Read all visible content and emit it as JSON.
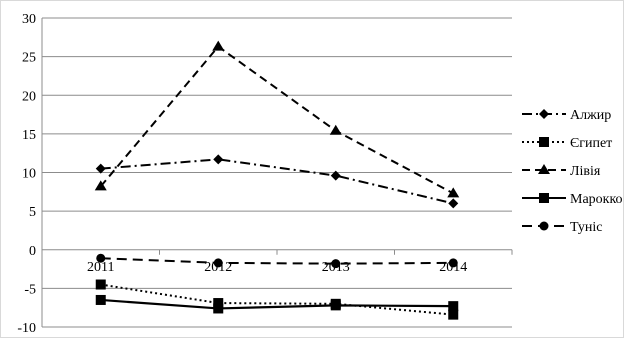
{
  "chart_data": {
    "type": "line",
    "categories": [
      "2011",
      "2012",
      "2013",
      "2014"
    ],
    "ylim": [
      -10,
      30
    ],
    "y_ticks": [
      "30",
      "25",
      "20",
      "15",
      "10",
      "5",
      "0",
      "-5",
      "-10"
    ],
    "grid": "horizontal",
    "legend_position": "right",
    "series": [
      {
        "name": "Алжир",
        "values": [
          10.5,
          11.7,
          9.6,
          6.0
        ],
        "marker": "diamond",
        "dash": "dashdot",
        "color": "#000000"
      },
      {
        "name": "Єгипет",
        "values": [
          -4.5,
          -6.9,
          -7.0,
          -8.4
        ],
        "marker": "square",
        "dash": "dotted",
        "color": "#000000"
      },
      {
        "name": "Лівія",
        "values": [
          8.2,
          26.3,
          15.4,
          7.3
        ],
        "marker": "triangle",
        "dash": "dashed",
        "color": "#000000"
      },
      {
        "name": "Марокко",
        "values": [
          -6.5,
          -7.6,
          -7.2,
          -7.3
        ],
        "marker": "square",
        "dash": "solid",
        "color": "#000000"
      },
      {
        "name": "Туніс",
        "values": [
          -1.1,
          -1.7,
          -1.8,
          -1.7
        ],
        "marker": "circle",
        "dash": "longdash",
        "color": "#000000"
      }
    ]
  }
}
